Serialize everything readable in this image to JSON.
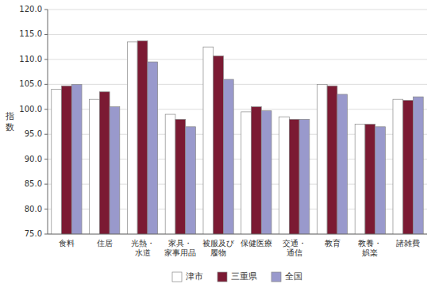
{
  "chart_data": {
    "type": "bar",
    "ylabel": "指\n数",
    "categories": [
      "食料",
      "住居",
      "光熱・\n水道",
      "家具・\n家事用品",
      "被服及び\n履物",
      "保健医療",
      "交通・\n通信",
      "教育",
      "教養・\n娯楽",
      "諸雑費"
    ],
    "series": [
      {
        "name": "津市",
        "color": "#ffffff",
        "values": [
          104.0,
          102.0,
          113.5,
          99.0,
          112.5,
          99.5,
          98.5,
          105.0,
          97.0,
          102.0
        ]
      },
      {
        "name": "三重県",
        "color": "#7b1a33",
        "values": [
          104.7,
          103.5,
          113.7,
          98.0,
          110.7,
          100.5,
          98.0,
          104.7,
          97.0,
          101.8
        ]
      },
      {
        "name": "全国",
        "color": "#9999cc",
        "values": [
          105.0,
          100.5,
          109.5,
          96.5,
          106.0,
          99.7,
          98.0,
          103.0,
          96.5,
          102.5
        ]
      }
    ],
    "ylim": [
      75.0,
      120.0
    ],
    "yticks": [
      {
        "value": 75,
        "label": "75.0"
      },
      {
        "value": 80,
        "label": "80.0"
      },
      {
        "value": 85,
        "label": "85.0"
      },
      {
        "value": 90,
        "label": "90.0"
      },
      {
        "value": 95,
        "label": "95.0"
      },
      {
        "value": 100,
        "label": "100.0"
      },
      {
        "value": 105,
        "label": "105.0"
      },
      {
        "value": 110,
        "label": "110.0"
      },
      {
        "value": 115,
        "label": "115.0"
      },
      {
        "value": 120,
        "label": "120.0"
      }
    ],
    "grid": true,
    "legend": "bottom"
  }
}
